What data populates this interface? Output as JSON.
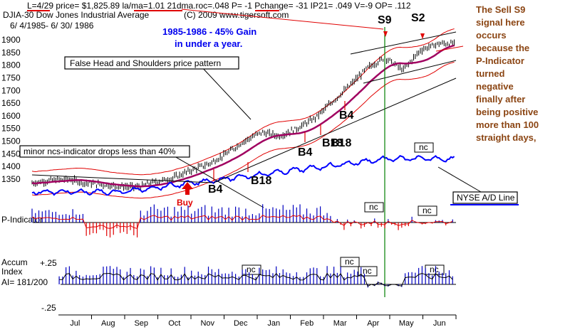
{
  "header": {
    "line1": "L=4/29  price= $1,825.89  la/ma=1.01  21dma.roc=.048  P= -1  Pchange= -31  IP21= .049  V=-9  OP= .112",
    "index_name": "DJIA-30  Dow Jones Industrial Average",
    "copyright": "(C) 2009 www.tigersoft.com",
    "date_range": "6/ 4/1985- 6/ 30/ 1986"
  },
  "gain_label": [
    "1985-1986 - 45% Gain",
    "in under a year."
  ],
  "sell_note": [
    "The Sell S9",
    "signal here",
    "occurs",
    "because the",
    "P-Indicator",
    "turned",
    "negative",
    "finally after",
    "being positive",
    "more than 100",
    "straight days,"
  ],
  "annotations": {
    "hs_box": "False Head and Shoulders price pattern",
    "minor_box": "minor ncs-indicator drops less than 40%",
    "nyse_label": "NYSE A/D Line",
    "buy": "Buy",
    "pind_label": "P-Indicator",
    "accum_label": [
      "Accum",
      "Index",
      "AI= 181/200"
    ],
    "accum_top": "+.25",
    "accum_bottom": "-.25"
  },
  "signals": [
    {
      "label": "B4",
      "date": "Nov"
    },
    {
      "label": "B18",
      "date": "Dec"
    },
    {
      "label": "B4",
      "date": "Feb"
    },
    {
      "label": "B18",
      "date": "Feb"
    },
    {
      "label": "B18",
      "date": "Feb"
    },
    {
      "label": "B4",
      "date": "Mar"
    },
    {
      "label": "S9",
      "date": "Apr"
    },
    {
      "label": "S2",
      "date": "May"
    }
  ],
  "nc_labels": [
    "nc",
    "nc",
    "nc",
    "nc",
    "nc",
    "nc",
    "nc"
  ],
  "chart_data": {
    "type": "line",
    "title": "DJIA-30  Dow Jones Industrial Average",
    "xlabel": "",
    "ylabel": "",
    "x_ticks": [
      "Jul",
      "Aug",
      "Sep",
      "Oct",
      "Nov",
      "Dec",
      "Jan",
      "Feb",
      "Mar",
      "Apr",
      "May",
      "Jun"
    ],
    "y_ticks": [
      1350,
      1400,
      1450,
      1500,
      1550,
      1600,
      1650,
      1700,
      1750,
      1800,
      1850,
      1900
    ],
    "ylim": [
      1300,
      1930
    ],
    "series": [
      {
        "name": "",
        "x": [
          0,
          0.5,
          1,
          1.5,
          2,
          2.5,
          3,
          3.5,
          4,
          4.5,
          5,
          5.5,
          6,
          6.5,
          7,
          7.5,
          8,
          8.5,
          9,
          9.5,
          10,
          10.5,
          11,
          11.5
        ],
        "values": [
          1335,
          1345,
          1350,
          1335,
          1328,
          1322,
          1318,
          1340,
          1355,
          1385,
          1410,
          1450,
          1500,
          1535,
          1520,
          1550,
          1590,
          1655,
          1720,
          1790,
          1830,
          1780,
          1860,
          1885
        ]
      }
    ],
    "grid": false,
    "legend": "none"
  },
  "colors": {
    "price": "#000000",
    "ma": "#a00060",
    "band": "#e00000",
    "nyse": "#0000ff",
    "pind": "#0000c0",
    "pind_neg": "#e00000",
    "accum": "#0000c0",
    "signal_line": "#008000"
  }
}
